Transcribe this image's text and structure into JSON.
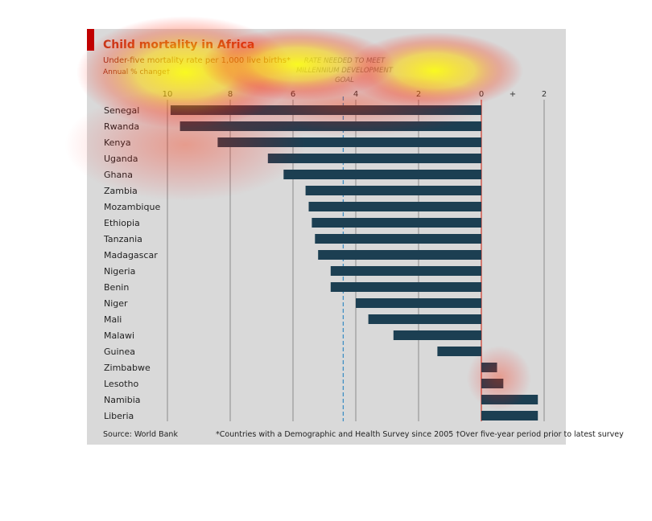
{
  "header": {
    "title": "Child mortality in Africa",
    "subtitle": "Under-five mortality rate per 1,000 live births*",
    "annual_label": "Annual % change†",
    "goal_line1": "RATE NEEDED TO MEET",
    "goal_line2": "MILLENNIUM DEVELOPMENT GOAL"
  },
  "footer": {
    "source": "Source: World Bank",
    "footnote": "*Countries with a Demographic and Health Survey since 2005   †Over five-year period prior to latest survey"
  },
  "colors": {
    "bar": "#1c3f52",
    "accent": "#c00000",
    "zero_line": "#d13a2a",
    "goal_line": "#3f8fc4",
    "grid": "#8a8a8a"
  },
  "chart_data": {
    "type": "bar",
    "orientation": "horizontal",
    "axis_direction": "reversed",
    "xlim": [
      10.5,
      -2.2
    ],
    "ticks": [
      {
        "value": 10,
        "label": "10"
      },
      {
        "value": 8,
        "label": "8"
      },
      {
        "value": 6,
        "label": "6"
      },
      {
        "value": 4,
        "label": "4"
      },
      {
        "value": 2,
        "label": "2"
      },
      {
        "value": 0,
        "label": "0"
      },
      {
        "value": -1,
        "label": "+"
      },
      {
        "value": -2,
        "label": "2"
      }
    ],
    "goal_value": 4.4,
    "categories": [
      "Senegal",
      "Rwanda",
      "Kenya",
      "Uganda",
      "Ghana",
      "Zambia",
      "Mozambique",
      "Ethiopia",
      "Tanzania",
      "Madagascar",
      "Nigeria",
      "Benin",
      "Niger",
      "Mali",
      "Malawi",
      "Guinea",
      "Zimbabwe",
      "Lesotho",
      "Namibia",
      "Liberia"
    ],
    "values": [
      9.9,
      9.6,
      8.4,
      6.8,
      6.3,
      5.6,
      5.5,
      5.4,
      5.3,
      5.2,
      4.8,
      4.8,
      4.0,
      3.6,
      2.8,
      1.4,
      -0.5,
      -0.7,
      -1.8,
      -1.8
    ]
  }
}
